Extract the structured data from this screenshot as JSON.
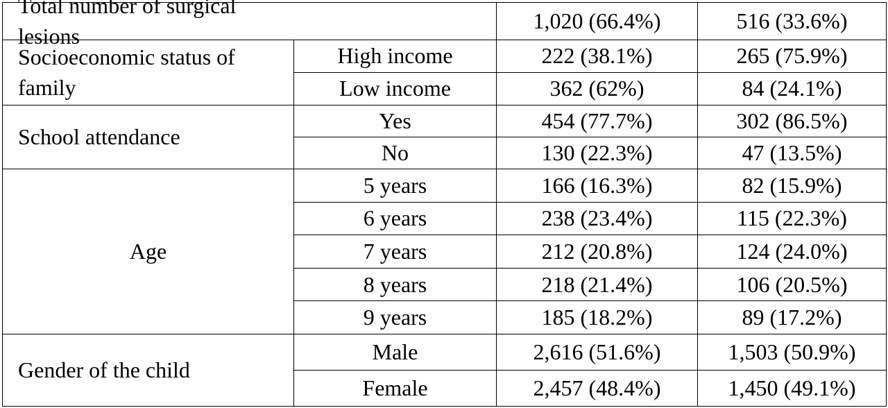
{
  "table": {
    "total": {
      "label": "Total number of surgical lesions",
      "values": [
        "1,020 (66.4%)",
        "516 (33.6%)"
      ]
    },
    "groups": [
      {
        "label": "Socioeconomic status of family",
        "rows": [
          [
            "High income",
            "222 (38.1%)",
            "265 (75.9%)"
          ],
          [
            "Low income",
            "362 (62%)",
            "84 (24.1%)"
          ]
        ]
      },
      {
        "label": "School attendance",
        "rows": [
          [
            "Yes",
            "454 (77.7%)",
            "302 (86.5%)"
          ],
          [
            "No",
            "130 (22.3%)",
            "47 (13.5%)"
          ]
        ]
      },
      {
        "label": "Age",
        "rows": [
          [
            "5 years",
            "166 (16.3%)",
            "82 (15.9%)"
          ],
          [
            "6 years",
            "238 (23.4%)",
            "115 (22.3%)"
          ],
          [
            "7 years",
            "212 (20.8%)",
            "124 (24.0%)"
          ],
          [
            "8 years",
            "218 (21.4%)",
            "106 (20.5%)"
          ],
          [
            "9 years",
            "185 (18.2%)",
            "89 (17.2%)"
          ]
        ]
      },
      {
        "label": "Gender of the child",
        "rows": [
          [
            "Male",
            "2,616 (51.6%)",
            "1,503 (50.9%)"
          ],
          [
            "Female",
            "2,457 (48.4%)",
            "1,450 (49.1%)"
          ]
        ]
      }
    ]
  }
}
